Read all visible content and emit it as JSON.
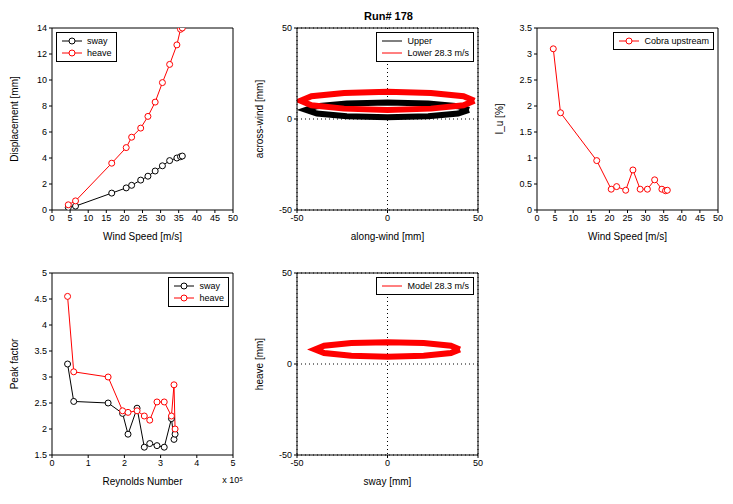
{
  "chart_data": [
    {
      "type": "line",
      "x_label": "Wind Speed [m/s]",
      "y_label": "Displacement [mm]",
      "x": [
        4.5,
        6.5,
        16.5,
        20.5,
        22,
        24.5,
        26.5,
        28.5,
        30.5,
        32.5,
        34.5,
        35.5,
        36
      ],
      "series": [
        {
          "name": "sway",
          "color": "#000000",
          "values": [
            0.2,
            0.3,
            1.3,
            1.7,
            1.9,
            2.3,
            2.6,
            3.0,
            3.4,
            3.8,
            4.0,
            4.1,
            4.15
          ]
        },
        {
          "name": "heave",
          "color": "#ff0000",
          "values": [
            0.4,
            0.7,
            3.6,
            4.8,
            5.6,
            6.3,
            7.2,
            8.3,
            9.8,
            11.2,
            12.7,
            13.9,
            14.0
          ]
        }
      ],
      "xlim": [
        0,
        50
      ],
      "xticks": [
        0,
        5,
        10,
        15,
        20,
        25,
        30,
        35,
        40,
        45,
        50
      ],
      "ylim": [
        0,
        14
      ],
      "yticks": [
        0,
        2,
        4,
        6,
        8,
        10,
        12,
        14
      ],
      "grid": false,
      "legend": "upper left",
      "marker": "o",
      "line_style": "solid"
    },
    {
      "type": "line",
      "title": "Run# 178",
      "x_label": "along-wind [mm]",
      "y_label": "across-wind [mm]",
      "series": [
        {
          "name": "Upper",
          "color": "#000000",
          "x": [
            45,
            39,
            22.5,
            0,
            -22.5,
            -39,
            -45,
            -39,
            -22.5,
            0,
            22.5,
            39,
            45
          ],
          "values": [
            5,
            7,
            8.5,
            9,
            8.5,
            7,
            5,
            3,
            1.5,
            1,
            1.5,
            3,
            5
          ]
        },
        {
          "name": "Lower 28.3 m/s",
          "color": "#ff0000",
          "x": [
            48,
            42,
            24,
            0,
            -24,
            -42,
            -48,
            -42,
            -24,
            0,
            24,
            42,
            48
          ],
          "values": [
            10,
            12.5,
            14.3,
            15,
            14.3,
            12.5,
            10,
            7.5,
            5.7,
            5,
            5.7,
            7.5,
            10
          ]
        }
      ],
      "xlim": [
        -50,
        50
      ],
      "xticks": [
        -50,
        0,
        50
      ],
      "ylim": [
        -50,
        50
      ],
      "yticks": [
        -50,
        0,
        50
      ],
      "grid": true,
      "legend": "upper right",
      "marker": "none",
      "line_style": "solid"
    },
    {
      "type": "line",
      "x_label": "Wind Speed [m/s]",
      "y_label": "I_u [%]",
      "x": [
        4.5,
        6.5,
        16.5,
        20.5,
        22,
        24.5,
        26.5,
        28.5,
        30.5,
        32.5,
        34.5,
        35.5,
        36
      ],
      "series": [
        {
          "name": "Cobra upstream",
          "color": "#ff0000",
          "values": [
            3.1,
            1.87,
            0.95,
            0.4,
            0.45,
            0.38,
            0.77,
            0.4,
            0.4,
            0.58,
            0.4,
            0.37,
            0.38
          ]
        }
      ],
      "xlim": [
        0,
        50
      ],
      "xticks": [
        0,
        5,
        10,
        15,
        20,
        25,
        30,
        35,
        40,
        45,
        50
      ],
      "ylim": [
        0,
        3.5
      ],
      "yticks": [
        0,
        0.5,
        1,
        1.5,
        2,
        2.5,
        3,
        3.5
      ],
      "grid": false,
      "legend": "upper right",
      "marker": "o",
      "line_style": "solid"
    },
    {
      "type": "line",
      "x_label": "Reynolds Number",
      "y_label": "Peak factor",
      "x_multiplier": "x 10⁵",
      "x": [
        0.43,
        0.6,
        1.55,
        1.95,
        2.1,
        2.35,
        2.55,
        2.7,
        2.9,
        3.1,
        3.3,
        3.37,
        3.4
      ],
      "series": [
        {
          "name": "sway",
          "color": "#000000",
          "values": [
            3.25,
            2.53,
            2.5,
            2.3,
            1.9,
            2.4,
            1.65,
            1.72,
            1.68,
            1.65,
            2.2,
            1.8,
            1.9
          ]
        },
        {
          "name": "heave",
          "color": "#ff0000",
          "values": [
            4.55,
            3.1,
            3.0,
            2.35,
            2.32,
            2.35,
            2.25,
            2.17,
            2.52,
            2.52,
            2.25,
            2.85,
            2.0
          ]
        }
      ],
      "xlim": [
        0,
        5
      ],
      "xticks": [
        0,
        1,
        2,
        3,
        4,
        5
      ],
      "ylim": [
        1.5,
        5
      ],
      "yticks": [
        1.5,
        2,
        2.5,
        3,
        3.5,
        4,
        4.5,
        5
      ],
      "grid": false,
      "legend": "upper right",
      "marker": "o",
      "line_style": "solid"
    },
    {
      "type": "line",
      "x_label": "sway [mm]",
      "y_label": "heave [mm]",
      "series": [
        {
          "name": "Model 28.3 m/s",
          "color": "#ff0000",
          "x": [
            40,
            35,
            20,
            0,
            -20,
            -35,
            -40,
            -35,
            -20,
            0,
            20,
            35,
            40
          ],
          "values": [
            8,
            10,
            11.5,
            12,
            11.5,
            10,
            8,
            6,
            4.5,
            4,
            4.5,
            6,
            8
          ]
        }
      ],
      "xlim": [
        -50,
        50
      ],
      "xticks": [
        -50,
        0,
        50
      ],
      "ylim": [
        -50,
        50
      ],
      "yticks": [
        -50,
        0,
        50
      ],
      "grid": true,
      "legend": "upper right",
      "marker": "none",
      "line_style": "solid"
    }
  ]
}
